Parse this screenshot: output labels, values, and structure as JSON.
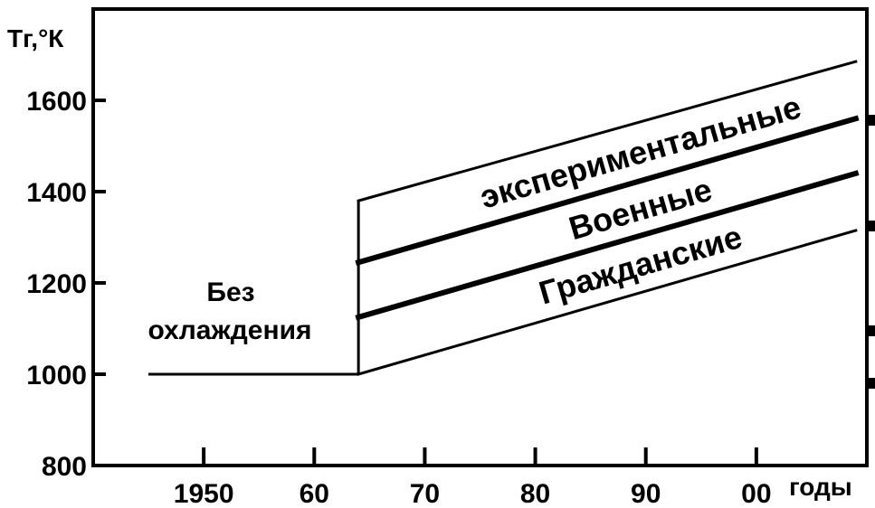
{
  "chart_data": {
    "type": "line",
    "title": "",
    "ylabel": "Тг,°К",
    "xlabel": "годы",
    "xlim": [
      1940,
      2010
    ],
    "ylim": [
      800,
      1800
    ],
    "x_ticks": [
      1950,
      1960,
      1970,
      1980,
      1990,
      2000
    ],
    "x_tick_labels": [
      "1950",
      "60",
      "70",
      "80",
      "90",
      "00"
    ],
    "y_ticks": [
      800,
      1000,
      1200,
      1400,
      1600
    ],
    "y_tick_labels": [
      "800",
      "1000",
      "1200",
      "1400",
      "1600"
    ],
    "grid": false,
    "uncooled": {
      "label_line1": "Без",
      "label_line2": "охлаждения",
      "x": [
        1945,
        1964
      ],
      "y": [
        1000,
        1000
      ]
    },
    "vertical_jump": {
      "x": 1964,
      "y": [
        1000,
        1380
      ]
    },
    "series": [
      {
        "x": [
          1964,
          2009
        ],
        "y": [
          1000,
          1315
        ],
        "bold": false
      },
      {
        "x": [
          1964,
          2009
        ],
        "y": [
          1125,
          1440
        ],
        "bold": true
      },
      {
        "x": [
          1964,
          2009
        ],
        "y": [
          1245,
          1560
        ],
        "bold": true
      },
      {
        "x": [
          1964,
          2009
        ],
        "y": [
          1380,
          1685
        ],
        "bold": false
      }
    ],
    "bands": [
      {
        "label": "экспериментальные",
        "lower": 2,
        "upper": 3
      },
      {
        "label": "Военные",
        "lower": 1,
        "upper": 2
      },
      {
        "label": "Гражданские",
        "lower": 0,
        "upper": 1
      }
    ]
  }
}
